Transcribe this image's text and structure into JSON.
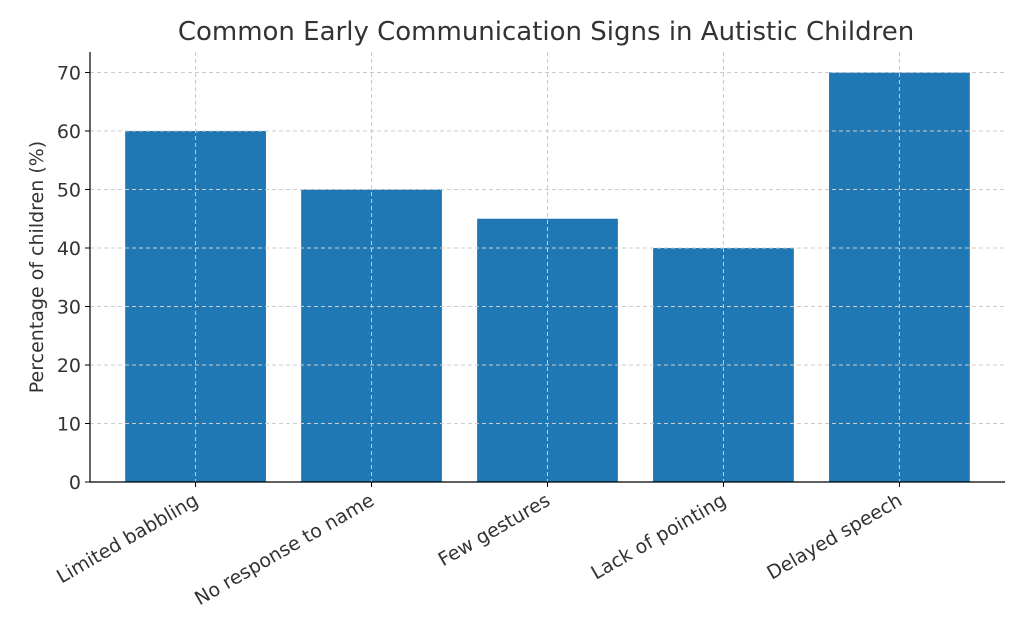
{
  "chart_data": {
    "type": "bar",
    "title": "Common Early Communication Signs in Autistic Children",
    "xlabel": "",
    "ylabel": "Percentage of children (%)",
    "categories": [
      "Limited babbling",
      "No response to name",
      "Few gestures",
      "Lack of pointing",
      "Delayed speech"
    ],
    "values": [
      60,
      50,
      45,
      40,
      70
    ],
    "ylim": [
      0,
      73.5
    ],
    "yticks": [
      0,
      10,
      20,
      30,
      40,
      50,
      60,
      70
    ],
    "grid": true,
    "bar_color": "#1f77b4",
    "x_tick_rotation_deg": 30
  }
}
